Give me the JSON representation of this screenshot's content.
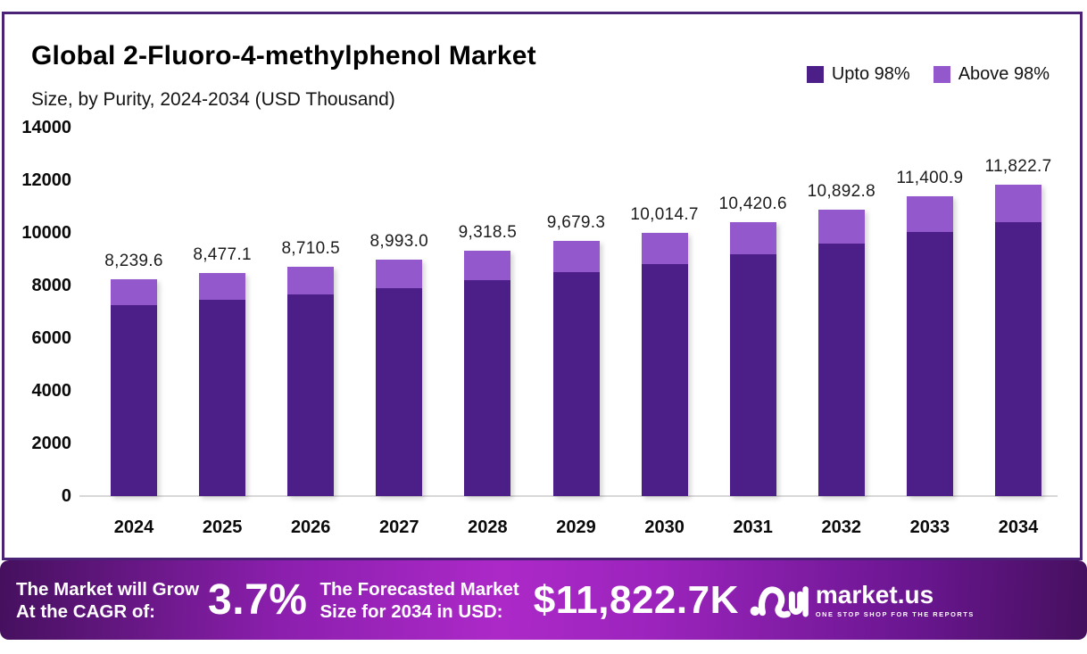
{
  "header": {
    "title": "Global 2-Fluoro-4-methylphenol Market",
    "subtitle": "Size, by Purity, 2024-2034 (USD Thousand)"
  },
  "legend": {
    "items": [
      {
        "label": "Upto 98%",
        "color": "#4b1f87"
      },
      {
        "label": "Above 98%",
        "color": "#9458cd"
      }
    ]
  },
  "chart_data": {
    "type": "bar",
    "stacked": true,
    "title": "Global 2-Fluoro-4-methylphenol Market Size, by Purity, 2024-2034 (USD Thousand)",
    "categories": [
      "2024",
      "2025",
      "2026",
      "2027",
      "2028",
      "2029",
      "2030",
      "2031",
      "2032",
      "2033",
      "2034"
    ],
    "totals": [
      8239.6,
      8477.1,
      8710.5,
      8993.0,
      9318.5,
      9679.3,
      10014.7,
      10420.6,
      10892.8,
      11400.9,
      11822.7
    ],
    "total_labels": [
      "8,239.6",
      "8,477.1",
      "8,710.5",
      "8,993.0",
      "9,318.5",
      "9,679.3",
      "10,014.7",
      "10,420.6",
      "10,892.8",
      "11,400.9",
      "11,822.7"
    ],
    "series": [
      {
        "name": "Upto 98%",
        "color": "#4b1f87",
        "values": [
          7250.8,
          7459.8,
          7665.2,
          7913.8,
          8200.3,
          8517.8,
          8812.9,
          9170.1,
          9585.7,
          10032.8,
          10404.0
        ]
      },
      {
        "name": "Above 98%",
        "color": "#9458cd",
        "values": [
          988.8,
          1017.3,
          1045.3,
          1079.2,
          1118.2,
          1161.5,
          1201.8,
          1250.5,
          1307.1,
          1368.1,
          1418.7
        ]
      }
    ],
    "xlabel": "",
    "ylabel": "",
    "ylim": [
      0,
      14000
    ],
    "yticks": [
      0,
      2000,
      4000,
      6000,
      8000,
      10000,
      12000,
      14000
    ],
    "grid": false,
    "legend_position": "top-right"
  },
  "footer": {
    "cagr_label_line1": "The Market will Grow",
    "cagr_label_line2": "At the CAGR of:",
    "cagr_value": "3.7%",
    "forecast_label_line1": "The Forecasted Market",
    "forecast_label_line2": "Size for 2034 in USD:",
    "forecast_value": "$11,822.7K",
    "brand_name": "market.us",
    "brand_tagline": "ONE STOP SHOP FOR THE REPORTS"
  },
  "colors": {
    "frame_border": "#4a2377",
    "axis_baseline": "#d8d8d8",
    "banner_center": "#ac29c8",
    "banner_edge": "#45105e",
    "text_dark": "#0a0a0a",
    "text_light": "#ffffff"
  }
}
